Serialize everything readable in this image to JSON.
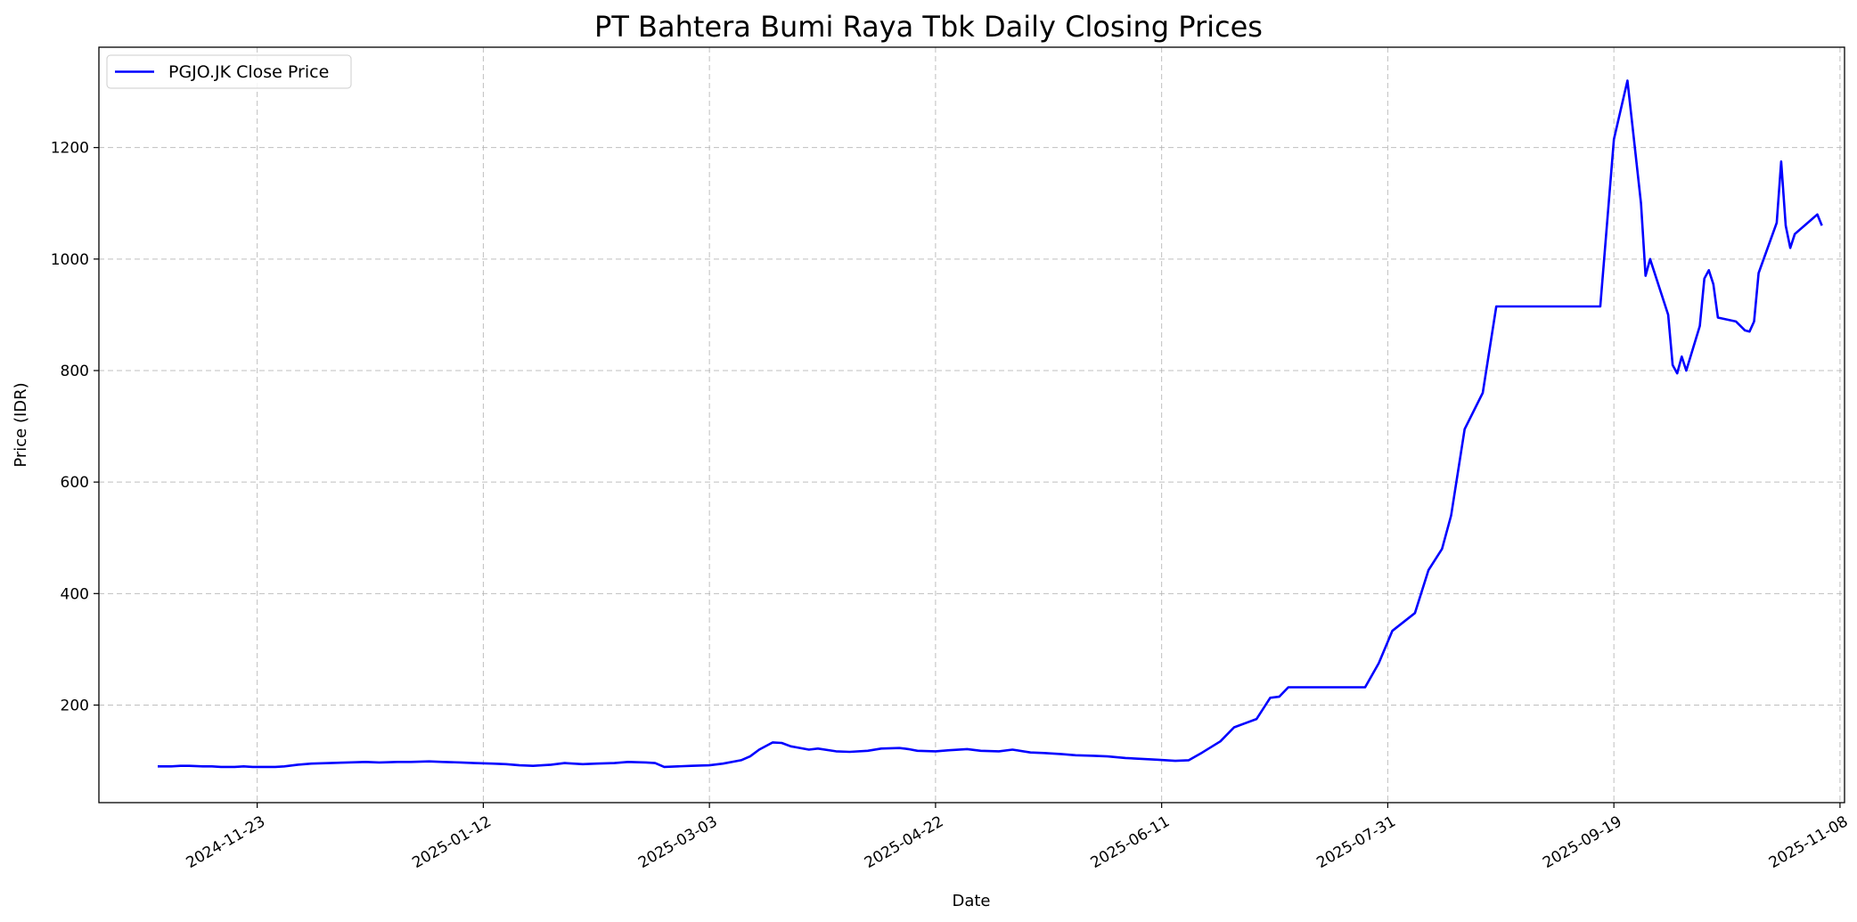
{
  "chart_data": {
    "type": "line",
    "title": "PT Bahtera Bumi Raya Tbk Daily Closing Prices",
    "xlabel": "Date",
    "ylabel": "Price (IDR)",
    "grid": true,
    "legend_position": "top-left",
    "x_ticks": [
      "2024-11-23",
      "2025-01-12",
      "2025-03-03",
      "2025-04-22",
      "2025-06-11",
      "2025-07-31",
      "2025-09-19",
      "2025-11-08"
    ],
    "y_ticks": [
      200,
      400,
      600,
      800,
      1000,
      1200
    ],
    "xlim": [
      "2024-10-19",
      "2025-11-09"
    ],
    "ylim": [
      25,
      1380
    ],
    "series": [
      {
        "name": "PGJO.JK Close Price",
        "color": "#0000ff",
        "points": [
          [
            "2024-11-01",
            90
          ],
          [
            "2024-11-04",
            90
          ],
          [
            "2024-11-06",
            91
          ],
          [
            "2024-11-08",
            91
          ],
          [
            "2024-11-11",
            90
          ],
          [
            "2024-11-13",
            90
          ],
          [
            "2024-11-15",
            89
          ],
          [
            "2024-11-18",
            89
          ],
          [
            "2024-11-20",
            90
          ],
          [
            "2024-11-22",
            89
          ],
          [
            "2024-11-25",
            89
          ],
          [
            "2024-11-27",
            89
          ],
          [
            "2024-11-29",
            90
          ],
          [
            "2024-12-02",
            93
          ],
          [
            "2024-12-05",
            95
          ],
          [
            "2024-12-09",
            96
          ],
          [
            "2024-12-13",
            97
          ],
          [
            "2024-12-17",
            98
          ],
          [
            "2024-12-20",
            97
          ],
          [
            "2024-12-24",
            98
          ],
          [
            "2024-12-27",
            98
          ],
          [
            "2024-12-31",
            99
          ],
          [
            "2025-01-03",
            98
          ],
          [
            "2025-01-07",
            97
          ],
          [
            "2025-01-10",
            96
          ],
          [
            "2025-01-14",
            95
          ],
          [
            "2025-01-17",
            94
          ],
          [
            "2025-01-20",
            92
          ],
          [
            "2025-01-23",
            91
          ],
          [
            "2025-01-27",
            93
          ],
          [
            "2025-01-30",
            96
          ],
          [
            "2025-02-03",
            94
          ],
          [
            "2025-02-06",
            95
          ],
          [
            "2025-02-10",
            96
          ],
          [
            "2025-02-13",
            98
          ],
          [
            "2025-02-17",
            97
          ],
          [
            "2025-02-19",
            96
          ],
          [
            "2025-02-21",
            89
          ],
          [
            "2025-02-24",
            90
          ],
          [
            "2025-02-27",
            91
          ],
          [
            "2025-03-03",
            92
          ],
          [
            "2025-03-06",
            95
          ],
          [
            "2025-03-10",
            101
          ],
          [
            "2025-03-12",
            108
          ],
          [
            "2025-03-14",
            120
          ],
          [
            "2025-03-17",
            133
          ],
          [
            "2025-03-19",
            132
          ],
          [
            "2025-03-21",
            126
          ],
          [
            "2025-03-25",
            120
          ],
          [
            "2025-03-27",
            122
          ],
          [
            "2025-03-31",
            117
          ],
          [
            "2025-04-03",
            116
          ],
          [
            "2025-04-07",
            118
          ],
          [
            "2025-04-10",
            122
          ],
          [
            "2025-04-14",
            123
          ],
          [
            "2025-04-16",
            121
          ],
          [
            "2025-04-18",
            118
          ],
          [
            "2025-04-22",
            117
          ],
          [
            "2025-04-25",
            119
          ],
          [
            "2025-04-29",
            121
          ],
          [
            "2025-05-02",
            118
          ],
          [
            "2025-05-06",
            117
          ],
          [
            "2025-05-09",
            120
          ],
          [
            "2025-05-13",
            115
          ],
          [
            "2025-05-16",
            114
          ],
          [
            "2025-05-20",
            112
          ],
          [
            "2025-05-23",
            110
          ],
          [
            "2025-05-27",
            109
          ],
          [
            "2025-05-30",
            108
          ],
          [
            "2025-06-03",
            105
          ],
          [
            "2025-06-10",
            102
          ],
          [
            "2025-06-14",
            100
          ],
          [
            "2025-06-17",
            101
          ],
          [
            "2025-06-20",
            115
          ],
          [
            "2025-06-24",
            135
          ],
          [
            "2025-06-27",
            160
          ],
          [
            "2025-07-02",
            175
          ],
          [
            "2025-07-05",
            213
          ],
          [
            "2025-07-07",
            215
          ],
          [
            "2025-07-09",
            232
          ],
          [
            "2025-07-18",
            232
          ],
          [
            "2025-07-26",
            232
          ],
          [
            "2025-07-29",
            275
          ],
          [
            "2025-08-01",
            333
          ],
          [
            "2025-08-06",
            365
          ],
          [
            "2025-08-09",
            442
          ],
          [
            "2025-08-12",
            480
          ],
          [
            "2025-08-14",
            540
          ],
          [
            "2025-08-17",
            695
          ],
          [
            "2025-08-21",
            760
          ],
          [
            "2025-08-24",
            915
          ],
          [
            "2025-09-03",
            915
          ],
          [
            "2025-09-12",
            915
          ],
          [
            "2025-09-16",
            915
          ],
          [
            "2025-09-19",
            1215
          ],
          [
            "2025-09-22",
            1320
          ],
          [
            "2025-09-25",
            1100
          ],
          [
            "2025-09-26",
            970
          ],
          [
            "2025-09-27",
            1000
          ],
          [
            "2025-10-01",
            900
          ],
          [
            "2025-10-02",
            810
          ],
          [
            "2025-10-03",
            795
          ],
          [
            "2025-10-04",
            825
          ],
          [
            "2025-10-05",
            800
          ],
          [
            "2025-10-08",
            880
          ],
          [
            "2025-10-09",
            965
          ],
          [
            "2025-10-10",
            980
          ],
          [
            "2025-10-11",
            955
          ],
          [
            "2025-10-12",
            895
          ],
          [
            "2025-10-16",
            888
          ],
          [
            "2025-10-18",
            872
          ],
          [
            "2025-10-19",
            870
          ],
          [
            "2025-10-20",
            888
          ],
          [
            "2025-10-21",
            975
          ],
          [
            "2025-10-25",
            1065
          ],
          [
            "2025-10-26",
            1175
          ],
          [
            "2025-10-27",
            1060
          ],
          [
            "2025-10-28",
            1020
          ],
          [
            "2025-10-29",
            1045
          ],
          [
            "2025-11-03",
            1080
          ],
          [
            "2025-11-04",
            1060
          ]
        ]
      }
    ]
  }
}
